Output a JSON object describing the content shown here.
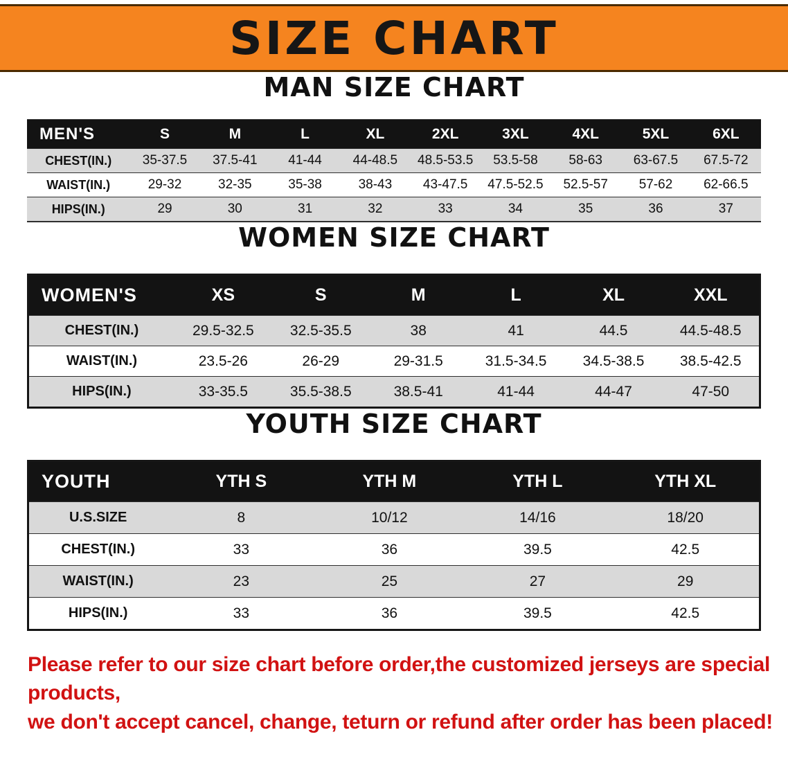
{
  "banner": {
    "title": "SIZE CHART"
  },
  "colors": {
    "banner_orange": "#f5841f",
    "header_black": "#131313",
    "row_gray": "#d9d9d9",
    "warning_red": "#d11212"
  },
  "sections": [
    {
      "heading": "MAN SIZE CHART",
      "table": {
        "header": [
          "MEN'S",
          "S",
          "M",
          "L",
          "XL",
          "2XL",
          "3XL",
          "4XL",
          "5XL",
          "6XL"
        ],
        "rows": [
          {
            "label": "CHEST(IN.)",
            "values": [
              "35-37.5",
              "37.5-41",
              "41-44",
              "44-48.5",
              "48.5-53.5",
              "53.5-58",
              "58-63",
              "63-67.5",
              "67.5-72"
            ]
          },
          {
            "label": "WAIST(IN.)",
            "values": [
              "29-32",
              "32-35",
              "35-38",
              "38-43",
              "43-47.5",
              "47.5-52.5",
              "52.5-57",
              "57-62",
              "62-66.5"
            ]
          },
          {
            "label": "HIPS(IN.)",
            "values": [
              "29",
              "30",
              "31",
              "32",
              "33",
              "34",
              "35",
              "36",
              "37"
            ]
          }
        ]
      }
    },
    {
      "heading": "WOMEN SIZE CHART",
      "table": {
        "header": [
          "WOMEN'S",
          "XS",
          "S",
          "M",
          "L",
          "XL",
          "XXL"
        ],
        "rows": [
          {
            "label": "CHEST(IN.)",
            "values": [
              "29.5-32.5",
              "32.5-35.5",
              "38",
              "41",
              "44.5",
              "44.5-48.5"
            ]
          },
          {
            "label": "WAIST(IN.)",
            "values": [
              "23.5-26",
              "26-29",
              "29-31.5",
              "31.5-34.5",
              "34.5-38.5",
              "38.5-42.5"
            ]
          },
          {
            "label": "HIPS(IN.)",
            "values": [
              "33-35.5",
              "35.5-38.5",
              "38.5-41",
              "41-44",
              "44-47",
              "47-50"
            ]
          }
        ]
      }
    },
    {
      "heading": "YOUTH SIZE CHART",
      "table": {
        "header": [
          "YOUTH",
          "YTH S",
          "YTH M",
          "YTH L",
          "YTH XL"
        ],
        "rows": [
          {
            "label": "U.S.SIZE",
            "values": [
              "8",
              "10/12",
              "14/16",
              "18/20"
            ]
          },
          {
            "label": "CHEST(IN.)",
            "values": [
              "33",
              "36",
              "39.5",
              "42.5"
            ]
          },
          {
            "label": "WAIST(IN.)",
            "values": [
              "23",
              "25",
              "27",
              "29"
            ]
          },
          {
            "label": "HIPS(IN.)",
            "values": [
              "33",
              "36",
              "39.5",
              "42.5"
            ]
          }
        ]
      }
    }
  ],
  "footer": {
    "line1": "Please refer to our size chart before order,the customized jerseys are special products,",
    "line2": "we don't accept cancel, change, teturn or refund after order has been placed!"
  }
}
